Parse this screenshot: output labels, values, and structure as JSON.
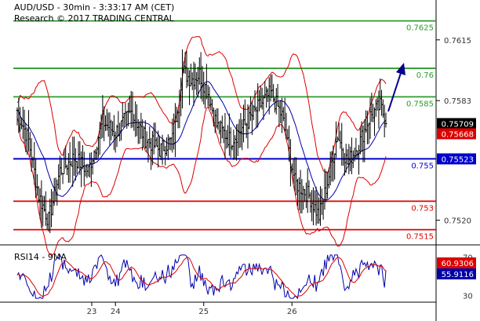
{
  "header": {
    "title": "AUD/USD - 30min - 3:33:17 AM (CET)",
    "subtitle": "Research © 2017 TRADING CENTRAL"
  },
  "colors": {
    "price": "#000000",
    "bollinger": "#dd0000",
    "moving_average": "#0000aa",
    "resistance": "#2e9a2e",
    "support": "#dd0000",
    "pivot": "#0000cc",
    "arrow": "#00008b",
    "rsi": "#0000aa",
    "rsi_ma": "#dd0000"
  },
  "chart_data": [
    {
      "type": "bar",
      "name": "price",
      "ylim": [
        0.7507,
        0.7636
      ],
      "y_ticks": [
        "0.7615",
        "0.7583",
        "0.7520"
      ],
      "x_ticks": [
        "23",
        "24",
        "25",
        "26"
      ],
      "bars": 260,
      "day_starts": [
        0,
        69,
        131,
        193
      ],
      "levels": [
        {
          "label": "0.7625",
          "value": 0.7625,
          "kind": "resistance"
        },
        {
          "label": "0.76",
          "value": 0.76,
          "kind": "resistance"
        },
        {
          "label": "0.7585",
          "value": 0.7585,
          "kind": "resistance"
        },
        {
          "label": "0.755",
          "value": 0.75523,
          "kind": "pivot"
        },
        {
          "label": "0.753",
          "value": 0.753,
          "kind": "support"
        },
        {
          "label": "0.7515",
          "value": 0.7515,
          "kind": "support"
        }
      ],
      "price_tags": [
        {
          "label": "0.75709",
          "value": 0.75709,
          "color": "#000000"
        },
        {
          "label": "0.75668",
          "value": 0.75668,
          "color": "#dd0000"
        },
        {
          "label": "0.75523",
          "value": 0.75523,
          "color": "#0000cc"
        }
      ],
      "anchors": [
        [
          0,
          0.7578
        ],
        [
          8,
          0.7562
        ],
        [
          15,
          0.7533
        ],
        [
          22,
          0.752
        ],
        [
          30,
          0.7546
        ],
        [
          40,
          0.7553
        ],
        [
          50,
          0.7546
        ],
        [
          60,
          0.7572
        ],
        [
          69,
          0.7566
        ],
        [
          80,
          0.7577
        ],
        [
          90,
          0.7563
        ],
        [
          100,
          0.7557
        ],
        [
          110,
          0.7563
        ],
        [
          116,
          0.7599
        ],
        [
          122,
          0.7594
        ],
        [
          128,
          0.7597
        ],
        [
          134,
          0.7587
        ],
        [
          140,
          0.757
        ],
        [
          150,
          0.7562
        ],
        [
          160,
          0.757
        ],
        [
          170,
          0.758
        ],
        [
          178,
          0.7587
        ],
        [
          186,
          0.7575
        ],
        [
          190,
          0.756
        ],
        [
          195,
          0.754
        ],
        [
          205,
          0.7533
        ],
        [
          212,
          0.7522
        ],
        [
          218,
          0.754
        ],
        [
          225,
          0.7565
        ],
        [
          232,
          0.755
        ],
        [
          240,
          0.756
        ],
        [
          248,
          0.7575
        ],
        [
          255,
          0.758
        ],
        [
          260,
          0.7571
        ]
      ]
    },
    {
      "type": "line",
      "name": "RSI14 - 9MA",
      "label": "RSI14 - 9MA",
      "ylim": [
        23,
        76
      ],
      "y_ticks": [
        "70",
        "30"
      ],
      "tags": [
        {
          "label": "60.9306",
          "value": 60.93,
          "color": "#dd0000"
        },
        {
          "label": "55.9116",
          "value": 55.91,
          "color": "#0000aa"
        }
      ]
    }
  ]
}
